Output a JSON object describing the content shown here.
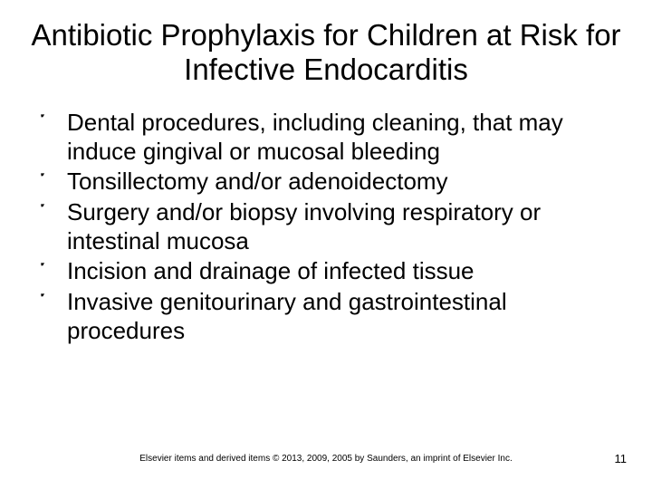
{
  "title": "Antibiotic Prophylaxis for Children at Risk for Infective Endocarditis",
  "title_fontsize": 33,
  "title_color": "#000000",
  "bullet_glyph": "་",
  "bullet_fontsize": 26,
  "bullet_color": "#000000",
  "bullets": [
    "Dental procedures, including cleaning, that may induce gingival or mucosal bleeding",
    "Tonsillectomy and/or adenoidectomy",
    "Surgery and/or biopsy involving respiratory or intestinal mucosa",
    "Incision and drainage of infected tissue",
    "Invasive genitourinary and gastrointestinal procedures"
  ],
  "footer": "Elsevier items and derived items © 2013, 2009, 2005 by Saunders, an imprint of Elsevier Inc.",
  "footer_fontsize": 10,
  "footer_color": "#000000",
  "page_number": "11",
  "page_number_fontsize": 13,
  "page_number_color": "#000000",
  "background_color": "#ffffff"
}
